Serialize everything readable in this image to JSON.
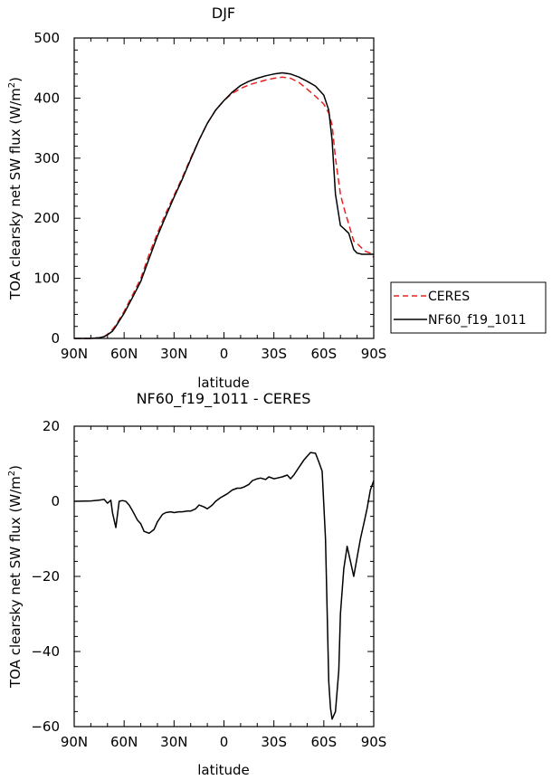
{
  "chart_data": [
    {
      "type": "line",
      "title": "DJF",
      "xlabel": "latitude",
      "ylabel": "TOA clearsky net SW flux (W/m²)",
      "ylabel_prefix": "TOA clearsky net SW flux (W/m",
      "ylabel_sup": "2",
      "ylabel_suffix": ")",
      "xlim": [
        90,
        -90
      ],
      "ylim": [
        0,
        500
      ],
      "xticks": [
        90,
        60,
        30,
        0,
        -30,
        -60,
        -90
      ],
      "xtick_labels": [
        "90N",
        "60N",
        "30N",
        "0",
        "30S",
        "60S",
        "90S"
      ],
      "yticks": [
        0,
        100,
        200,
        300,
        400,
        500
      ],
      "ytick_labels": [
        "0",
        "100",
        "200",
        "300",
        "400",
        "500"
      ],
      "legend_position": "right",
      "series": [
        {
          "name": "CERES",
          "color": "#e8211f",
          "dash": "dashed",
          "x": [
            90,
            80,
            75,
            72,
            70,
            67,
            65,
            60,
            55,
            50,
            45,
            40,
            35,
            30,
            25,
            20,
            15,
            10,
            5,
            0,
            -5,
            -10,
            -15,
            -20,
            -25,
            -30,
            -35,
            -40,
            -45,
            -50,
            -55,
            -60,
            -63,
            -65,
            -67,
            -70,
            -72,
            -75,
            -78,
            -80,
            -83,
            -85,
            -88,
            -90
          ],
          "y": [
            0,
            0,
            1,
            3,
            7,
            15,
            22,
            45,
            72,
            100,
            140,
            175,
            208,
            238,
            268,
            300,
            330,
            358,
            380,
            396,
            408,
            416,
            422,
            426,
            430,
            433,
            435,
            433,
            426,
            415,
            403,
            390,
            375,
            355,
            300,
            240,
            218,
            190,
            162,
            158,
            150,
            145,
            142,
            135
          ]
        },
        {
          "name": "NF60_f19_1011",
          "color": "#000000",
          "dash": "solid",
          "x": [
            90,
            80,
            75,
            72,
            70,
            67,
            65,
            60,
            55,
            50,
            45,
            40,
            35,
            30,
            25,
            20,
            15,
            10,
            5,
            0,
            -5,
            -10,
            -15,
            -20,
            -25,
            -30,
            -35,
            -40,
            -45,
            -50,
            -55,
            -60,
            -63,
            -65,
            -67,
            -70,
            -72,
            -75,
            -78,
            -80,
            -83,
            -85,
            -88,
            -90
          ],
          "y": [
            0,
            0,
            1,
            3,
            6,
            12,
            20,
            42,
            68,
            95,
            133,
            170,
            203,
            235,
            265,
            298,
            330,
            358,
            380,
            396,
            410,
            421,
            428,
            433,
            437,
            440,
            442,
            440,
            435,
            428,
            420,
            405,
            380,
            330,
            240,
            188,
            183,
            175,
            148,
            142,
            140,
            140,
            140,
            140
          ]
        }
      ]
    },
    {
      "type": "line",
      "title": "NF60_f19_1011 - CERES",
      "xlabel": "latitude",
      "ylabel": "TOA clearsky net SW flux (W/m²)",
      "ylabel_prefix": "TOA clearsky net SW flux (W/m",
      "ylabel_sup": "2",
      "ylabel_suffix": ")",
      "xlim": [
        90,
        -90
      ],
      "ylim": [
        -60,
        20
      ],
      "xticks": [
        90,
        60,
        30,
        0,
        -30,
        -60,
        -90
      ],
      "xtick_labels": [
        "90N",
        "60N",
        "30N",
        "0",
        "30S",
        "60S",
        "90S"
      ],
      "yticks": [
        20,
        0,
        -20,
        -40,
        -60
      ],
      "ytick_labels": [
        "20",
        "0",
        "−20",
        "−40",
        "−60"
      ],
      "series": [
        {
          "color": "#000000",
          "dash": "solid",
          "x": [
            90,
            80,
            75,
            72,
            70,
            68,
            67,
            65,
            63,
            61,
            59,
            57,
            55,
            52,
            50,
            48,
            45,
            42,
            40,
            37,
            35,
            32,
            30,
            27,
            25,
            22,
            20,
            17,
            15,
            12,
            10,
            7,
            5,
            2,
            0,
            -2,
            -5,
            -8,
            -10,
            -12,
            -15,
            -17,
            -20,
            -22,
            -25,
            -27,
            -30,
            -32,
            -35,
            -38,
            -40,
            -42,
            -45,
            -48,
            -50,
            -52,
            -55,
            -57,
            -59,
            -61,
            -63,
            -64,
            -65,
            -67,
            -69,
            -70,
            -72,
            -74,
            -76,
            -78,
            -80,
            -82,
            -84,
            -86,
            -88,
            -90
          ],
          "y": [
            0,
            0.1,
            0.3,
            0.5,
            -0.5,
            0.3,
            -3,
            -7,
            0,
            0.2,
            0,
            -1,
            -2.5,
            -5,
            -6,
            -8,
            -8.5,
            -7.5,
            -5.5,
            -3.5,
            -3,
            -2.8,
            -3,
            -2.8,
            -2.8,
            -2.6,
            -2.6,
            -2,
            -1,
            -1.5,
            -2,
            -1,
            0,
            1,
            1.5,
            2,
            3,
            3.5,
            3.5,
            3.8,
            4.5,
            5.5,
            6,
            6.2,
            5.8,
            6.5,
            6,
            6.2,
            6.5,
            7,
            6,
            7,
            9,
            11,
            12,
            13,
            12.8,
            10.5,
            8,
            -10,
            -48,
            -55,
            -58,
            -56,
            -45,
            -30,
            -18,
            -12,
            -16,
            -20,
            -15,
            -10,
            -6,
            -2,
            3,
            5.5
          ]
        }
      ]
    }
  ]
}
